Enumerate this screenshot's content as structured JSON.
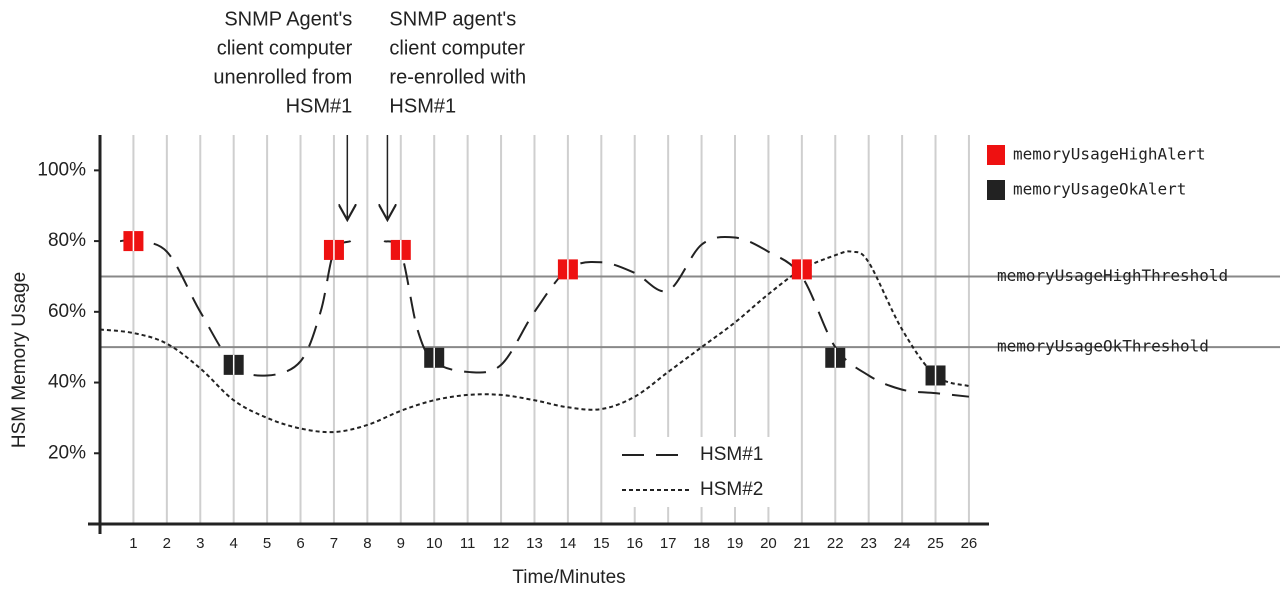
{
  "chart_data": {
    "type": "line",
    "x_label": "Time/Minutes",
    "y_label": "HSM Memory Usage",
    "xlim": [
      0,
      26.6
    ],
    "ylim": [
      0,
      110
    ],
    "xticks": [
      1,
      2,
      3,
      4,
      5,
      6,
      7,
      8,
      9,
      10,
      11,
      12,
      13,
      14,
      15,
      16,
      17,
      18,
      19,
      20,
      21,
      22,
      23,
      24,
      25,
      26
    ],
    "yticks": [
      {
        "value": 20,
        "label": "20%"
      },
      {
        "value": 40,
        "label": "40%"
      },
      {
        "value": 60,
        "label": "60%"
      },
      {
        "value": 80,
        "label": "80%"
      },
      {
        "value": 100,
        "label": "100%"
      }
    ],
    "grid": true,
    "series": [
      {
        "name": "HSM#1",
        "color": "#222222",
        "dash": "long",
        "x": [
          0.6,
          1,
          2,
          3,
          4,
          5,
          6,
          6.6,
          7,
          7.5,
          8,
          8.5,
          9,
          9.5,
          10,
          11,
          12,
          13,
          14,
          15,
          16,
          17,
          18,
          19,
          20,
          21,
          22,
          23,
          24,
          25,
          26
        ],
        "values": [
          80,
          80,
          77,
          60,
          45,
          42,
          46,
          60,
          77,
          80,
          null,
          80,
          77,
          55,
          46,
          43,
          45,
          60,
          72,
          74,
          71,
          66,
          79,
          81,
          77,
          70,
          50,
          42,
          38,
          37,
          36
        ]
      },
      {
        "name": "HSM#2",
        "color": "#222222",
        "dash": "short",
        "x": [
          0,
          1,
          2,
          3,
          4,
          5,
          6,
          7,
          8,
          9,
          10,
          11,
          12,
          13,
          14,
          15,
          16,
          17,
          18,
          19,
          20,
          21,
          22,
          22.5,
          23,
          24,
          25,
          26
        ],
        "values": [
          55,
          54,
          51,
          44,
          35,
          30,
          27,
          26,
          28,
          32,
          35,
          36.5,
          36.5,
          35,
          33,
          32.5,
          36,
          43,
          50,
          57,
          65,
          72,
          76,
          77,
          74,
          55,
          42,
          39
        ]
      }
    ],
    "alerts": [
      {
        "name": "memoryUsageHighAlert",
        "color": "#ee1111",
        "x": [
          1,
          7,
          9,
          14,
          21
        ],
        "values": [
          80,
          77.5,
          77.5,
          72,
          72
        ]
      },
      {
        "name": "memoryUsageOkAlert",
        "color": "#222222",
        "x": [
          4,
          10,
          22,
          25
        ],
        "values": [
          45,
          47,
          47,
          42
        ]
      }
    ],
    "thresholds": [
      {
        "name": "memoryUsageHighThreshold",
        "value": 70
      },
      {
        "name": "memoryUsageOkThreshold",
        "value": 50
      }
    ],
    "annotations": [
      {
        "lines": [
          "SNMP Agent's",
          "client computer",
          "unenrolled from",
          "HSM#1"
        ],
        "x": 7.4
      },
      {
        "lines": [
          "SNMP agent's",
          "client computer",
          "re-enrolled with",
          "HSM#1"
        ],
        "x": 8.6
      }
    ]
  }
}
